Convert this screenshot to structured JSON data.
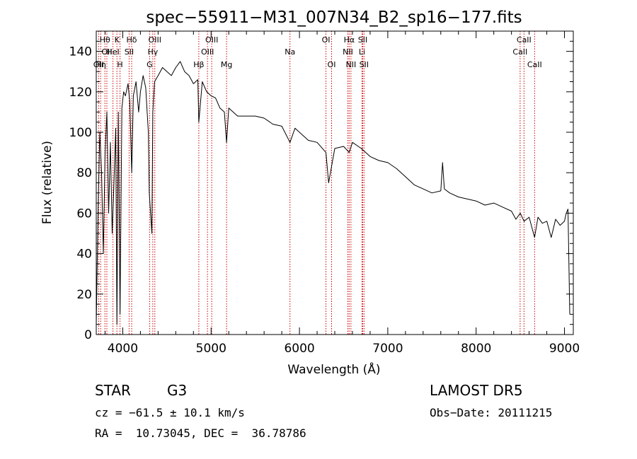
{
  "chart_data": {
    "type": "line",
    "title": "spec−55911−M31_007N34_B2_sp16−177.fits",
    "xlabel": "Wavelength (Å)",
    "ylabel": "Flux (relative)",
    "xlim": [
      3700,
      9100
    ],
    "ylim": [
      0,
      150
    ],
    "xticks": [
      4000,
      5000,
      6000,
      7000,
      8000,
      9000
    ],
    "yticks": [
      0,
      20,
      40,
      60,
      80,
      100,
      120,
      140
    ],
    "grid": false,
    "line_color": "#000000",
    "marker_color": "#cc0000",
    "series": [
      {
        "x": [
          3700,
          3720,
          3740,
          3760,
          3780,
          3800,
          3820,
          3840,
          3860,
          3880,
          3900,
          3920,
          3934,
          3950,
          3969,
          3990,
          4010,
          4030,
          4060,
          4080,
          4101,
          4120,
          4150,
          4180,
          4200,
          4230,
          4260,
          4290,
          4300,
          4330,
          4340,
          4360,
          4400,
          4450,
          4500,
          4550,
          4600,
          4650,
          4700,
          4750,
          4800,
          4850,
          4861,
          4900,
          4950,
          5000,
          5050,
          5100,
          5150,
          5175,
          5200,
          5300,
          5400,
          5500,
          5600,
          5700,
          5800,
          5893,
          5950,
          6000,
          6100,
          6200,
          6300,
          6330,
          6400,
          6500,
          6563,
          6600,
          6700,
          6800,
          6900,
          7000,
          7100,
          7200,
          7300,
          7400,
          7500,
          7600,
          7620,
          7640,
          7700,
          7800,
          7900,
          8000,
          8100,
          8200,
          8300,
          8400,
          8450,
          8500,
          8542,
          8600,
          8662,
          8700,
          8750,
          8800,
          8850,
          8900,
          8950,
          9000,
          9020,
          9040,
          9060
        ],
        "y": [
          5,
          60,
          100,
          80,
          40,
          90,
          110,
          60,
          95,
          50,
          75,
          102,
          5,
          110,
          10,
          112,
          120,
          118,
          124,
          115,
          80,
          118,
          125,
          110,
          120,
          128,
          122,
          100,
          70,
          50,
          110,
          125,
          128,
          132,
          130,
          128,
          132,
          135,
          130,
          128,
          124,
          126,
          105,
          125,
          120,
          118,
          117,
          112,
          110,
          95,
          112,
          108,
          108,
          108,
          107,
          104,
          103,
          95,
          102,
          100,
          96,
          95,
          90,
          75,
          92,
          93,
          90,
          95,
          92,
          88,
          86,
          85,
          82,
          78,
          74,
          72,
          70,
          71,
          85,
          72,
          70,
          68,
          67,
          66,
          64,
          65,
          63,
          61,
          57,
          60,
          56,
          58,
          48,
          58,
          55,
          56,
          48,
          57,
          54,
          56,
          60,
          62,
          10
        ]
      }
    ],
    "line_markers": [
      {
        "wavelength": 3727,
        "label": "OII",
        "row": 3
      },
      {
        "wavelength": 3750,
        "label": "Hη",
        "row": 3
      },
      {
        "wavelength": 3798,
        "label": "Hθ",
        "row": 1
      },
      {
        "wavelength": 3820,
        "label": "OII",
        "row": 2
      },
      {
        "wavelength": 3889,
        "label": "HeI",
        "row": 2
      },
      {
        "wavelength": 3934,
        "label": "K",
        "row": 1
      },
      {
        "wavelength": 3969,
        "label": "H",
        "row": 3
      },
      {
        "wavelength": 4072,
        "label": "SII",
        "row": 2
      },
      {
        "wavelength": 4101,
        "label": "Hδ",
        "row": 1
      },
      {
        "wavelength": 4304,
        "label": "G",
        "row": 3
      },
      {
        "wavelength": 4340,
        "label": "Hγ",
        "row": 2
      },
      {
        "wavelength": 4363,
        "label": "OIII",
        "row": 1
      },
      {
        "wavelength": 4861,
        "label": "Hβ",
        "row": 3
      },
      {
        "wavelength": 4959,
        "label": "OIII",
        "row": 2
      },
      {
        "wavelength": 5007,
        "label": "OIII",
        "row": 1
      },
      {
        "wavelength": 5175,
        "label": "Mg",
        "row": 3
      },
      {
        "wavelength": 5893,
        "label": "Na",
        "row": 2
      },
      {
        "wavelength": 6300,
        "label": "OI",
        "row": 1
      },
      {
        "wavelength": 6364,
        "label": "OI",
        "row": 3
      },
      {
        "wavelength": 6548,
        "label": "NII",
        "row": 2
      },
      {
        "wavelength": 6563,
        "label": "Hα",
        "row": 1
      },
      {
        "wavelength": 6583,
        "label": "NII",
        "row": 3
      },
      {
        "wavelength": 6708,
        "label": "Li",
        "row": 2
      },
      {
        "wavelength": 6716,
        "label": "SII",
        "row": 1
      },
      {
        "wavelength": 6731,
        "label": "SII",
        "row": 3
      },
      {
        "wavelength": 8498,
        "label": "CaII",
        "row": 2
      },
      {
        "wavelength": 8542,
        "label": "CaII",
        "row": 1
      },
      {
        "wavelength": 8662,
        "label": "CaII",
        "row": 3
      }
    ]
  },
  "info": {
    "object_class": "STAR",
    "subclass": "G3",
    "survey": "LAMOST DR5",
    "cz": "cz = −61.5 ± 10.1 km/s",
    "obs_date": "Obs−Date: 20111215",
    "radec": "RA =  10.73045, DEC =  36.78786"
  }
}
